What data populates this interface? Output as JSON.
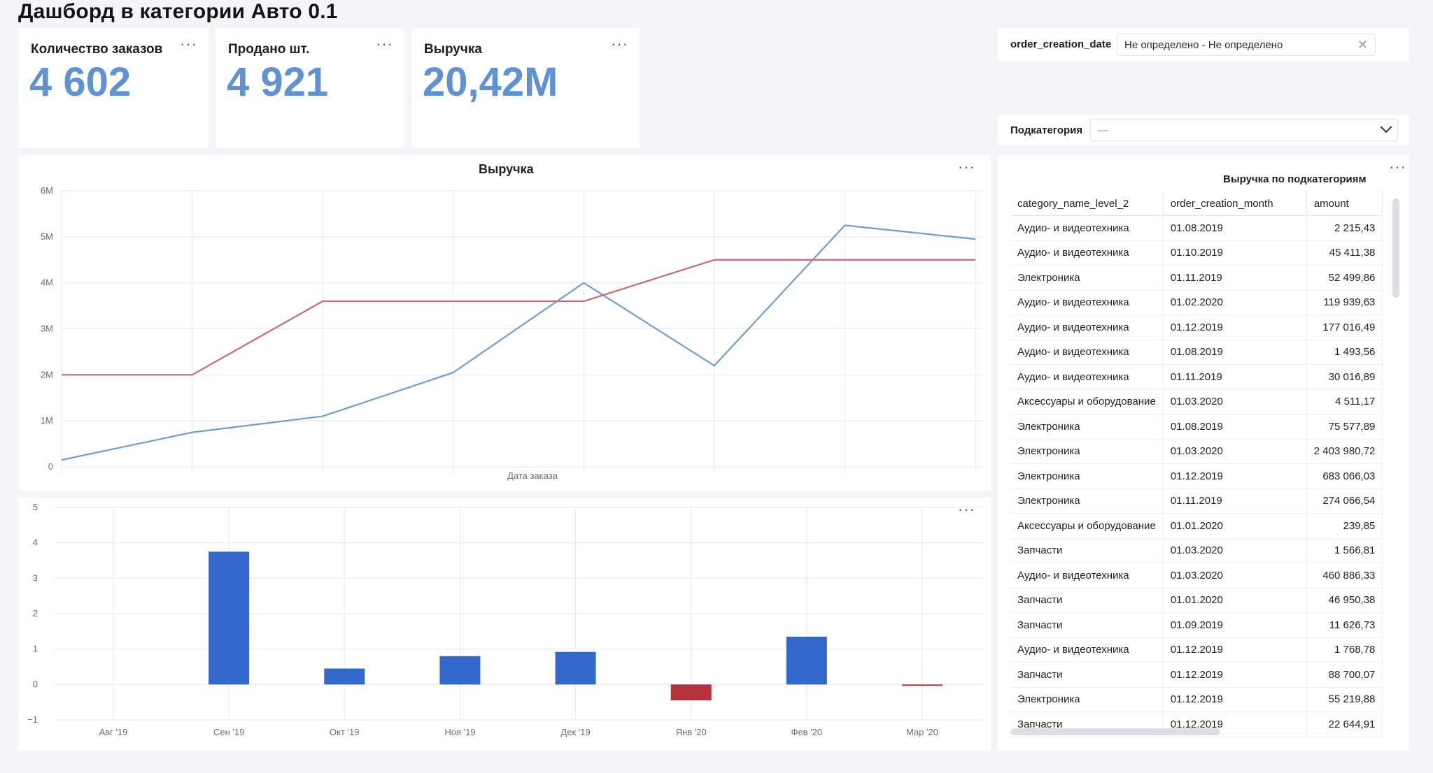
{
  "page": {
    "title": "Дашборд в категории Авто 0.1"
  },
  "kpis": [
    {
      "label": "Количество заказов",
      "value": "4 602"
    },
    {
      "label": "Продано шт.",
      "value": "4 921"
    },
    {
      "label": "Выручка",
      "value": "20,42M"
    }
  ],
  "more_icon": "···",
  "filters": {
    "date_label": "order_creation_date",
    "date_value": "Не определено - Не определено",
    "date_clear": "✕",
    "subcat_label": "Подкатегория",
    "subcat_value": "—"
  },
  "chart_data": [
    {
      "type": "line",
      "title": "Выручка",
      "xlabel": "Дата заказа",
      "ylabel": "",
      "y_tick_labels": [
        "0",
        "1M",
        "2M",
        "3M",
        "4M",
        "5M",
        "6M"
      ],
      "ylim": [
        0,
        6000000
      ],
      "grid": true,
      "x": [
        0,
        1,
        2,
        3,
        4,
        5,
        6,
        7
      ],
      "series": [
        {
          "color": "#6d9fd1",
          "values": [
            150000,
            750000,
            1100000,
            2050000,
            4000000,
            2200000,
            5250000,
            4950000
          ]
        },
        {
          "color": "#d0667a",
          "values": [
            2000000,
            2000000,
            3600000,
            3600000,
            3600000,
            4500000,
            4500000,
            4500000
          ]
        }
      ]
    },
    {
      "type": "bar",
      "categories": [
        "Авг '19",
        "Сен '19",
        "Окт '19",
        "Ноя '19",
        "Дек '19",
        "Янв '20",
        "Фев '20",
        "Мар '20"
      ],
      "values": [
        0,
        3.75,
        0.45,
        0.8,
        0.92,
        -0.45,
        1.35,
        -0.04
      ],
      "ylim": [
        -1,
        5
      ],
      "y_tick_labels": [
        "−1",
        "0",
        "1",
        "2",
        "3",
        "4",
        "5"
      ],
      "positive_color": "#3367c9",
      "negative_color": "#b3323c",
      "grid": true
    }
  ],
  "table": {
    "title": "Выручка по подкатегориям",
    "columns": [
      "category_name_level_2",
      "order_creation_month",
      "amount"
    ],
    "rows": [
      [
        "Аудио- и видеотехника",
        "01.08.2019",
        "2 215,43"
      ],
      [
        "Аудио- и видеотехника",
        "01.10.2019",
        "45 411,38"
      ],
      [
        "Электроника",
        "01.11.2019",
        "52 499,86"
      ],
      [
        "Аудио- и видеотехника",
        "01.02.2020",
        "119 939,63"
      ],
      [
        "Аудио- и видеотехника",
        "01.12.2019",
        "177 016,49"
      ],
      [
        "Аудио- и видеотехника",
        "01.08.2019",
        "1 493,56"
      ],
      [
        "Аудио- и видеотехника",
        "01.11.2019",
        "30 016,89"
      ],
      [
        "Аксессуары и оборудование",
        "01.03.2020",
        "4 511,17"
      ],
      [
        "Электроника",
        "01.08.2019",
        "75 577,89"
      ],
      [
        "Электроника",
        "01.03.2020",
        "2 403 980,72"
      ],
      [
        "Электроника",
        "01.12.2019",
        "683 066,03"
      ],
      [
        "Электроника",
        "01.11.2019",
        "274 066,54"
      ],
      [
        "Аксессуары и оборудование",
        "01.01.2020",
        "239,85"
      ],
      [
        "Запчасти",
        "01.03.2020",
        "1 566,81"
      ],
      [
        "Аудио- и видеотехника",
        "01.03.2020",
        "460 886,33"
      ],
      [
        "Запчасти",
        "01.01.2020",
        "46 950,38"
      ],
      [
        "Запчасти",
        "01.09.2019",
        "11 626,73"
      ],
      [
        "Аудио- и видеотехника",
        "01.12.2019",
        "1 768,78"
      ],
      [
        "Запчасти",
        "01.12.2019",
        "88 700,07"
      ],
      [
        "Электроника",
        "01.12.2019",
        "55 219,88"
      ],
      [
        "Запчасти",
        "01.12.2019",
        "22 644,91"
      ]
    ]
  }
}
